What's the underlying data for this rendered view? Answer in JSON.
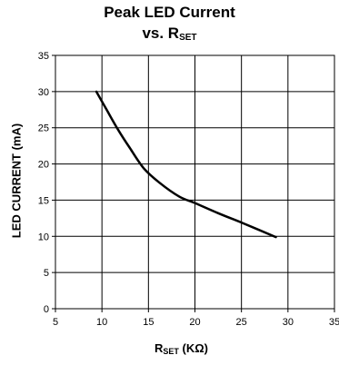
{
  "chart_data": {
    "type": "line",
    "title_line1": "Peak LED Current",
    "title_line2_prefix": "vs. R",
    "title_line2_sub": "SET",
    "xlabel_prefix": "R",
    "xlabel_sub": "SET",
    "xlabel_suffix": " (KΩ)",
    "ylabel": "LED CURRENT (mA)",
    "xlim": [
      5,
      35
    ],
    "ylim": [
      0,
      35
    ],
    "x_ticks": [
      5,
      10,
      15,
      20,
      25,
      30,
      35
    ],
    "y_ticks": [
      0,
      5,
      10,
      15,
      20,
      25,
      30,
      35
    ],
    "grid": true,
    "line_color": "#000000",
    "series": [
      {
        "x": [
          9.4,
          10.5,
          11.7,
          13.0,
          14.5,
          16.2,
          18.3,
          20.0,
          22.5,
          25.0,
          28.7
        ],
        "y": [
          30.0,
          27.5,
          24.8,
          22.2,
          19.4,
          17.4,
          15.5,
          14.6,
          13.2,
          11.9,
          9.9
        ]
      }
    ]
  }
}
